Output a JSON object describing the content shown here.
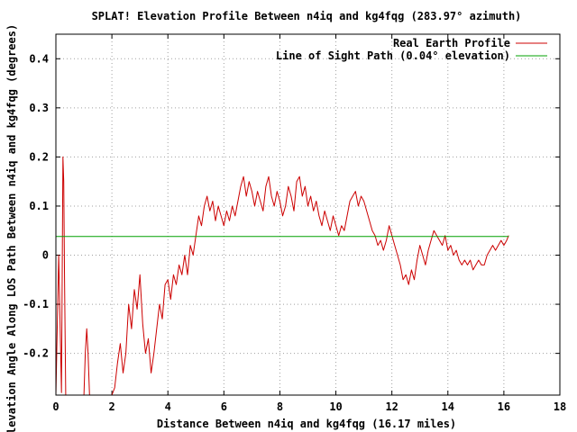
{
  "chart_data": {
    "type": "line",
    "title": "SPLAT! Elevation Profile Between n4iq and kg4fqg (283.97° azimuth)",
    "xlabel": "Distance Between n4iq and kg4fqg (16.17 miles)",
    "ylabel": "Elevation Angle Along LOS Path Between n4iq and kg4fqg (degrees)",
    "xlim": [
      0,
      18
    ],
    "ylim": [
      -0.285,
      0.45
    ],
    "xticks": [
      "0",
      "2",
      "4",
      "6",
      "8",
      "10",
      "12",
      "14",
      "16",
      "18"
    ],
    "yticks": [
      "-0.2",
      "-0.1",
      "0",
      "0.1",
      "0.2",
      "0.3",
      "0.4"
    ],
    "grid": true,
    "legend_position": "top-right",
    "colors": {
      "earth": "#cc0000",
      "los": "#00a000",
      "grid": "#a0a0a0"
    },
    "series": [
      {
        "name": "Real Earth Profile",
        "color": "#cc0000",
        "x": [
          0.0,
          0.1,
          0.2,
          0.25,
          0.28,
          0.31,
          0.35,
          0.4,
          1.0,
          1.05,
          1.1,
          1.15,
          1.2,
          2.0,
          2.1,
          2.2,
          2.3,
          2.4,
          2.5,
          2.6,
          2.7,
          2.8,
          2.9,
          3.0,
          3.1,
          3.2,
          3.3,
          3.4,
          3.5,
          3.6,
          3.7,
          3.8,
          3.9,
          4.0,
          4.1,
          4.2,
          4.3,
          4.4,
          4.5,
          4.6,
          4.7,
          4.8,
          4.9,
          5.0,
          5.1,
          5.2,
          5.3,
          5.4,
          5.5,
          5.6,
          5.7,
          5.8,
          5.9,
          6.0,
          6.1,
          6.2,
          6.3,
          6.4,
          6.5,
          6.6,
          6.7,
          6.8,
          6.9,
          7.0,
          7.1,
          7.2,
          7.3,
          7.4,
          7.5,
          7.6,
          7.7,
          7.8,
          7.9,
          8.0,
          8.1,
          8.2,
          8.3,
          8.4,
          8.5,
          8.6,
          8.7,
          8.8,
          8.9,
          9.0,
          9.1,
          9.2,
          9.3,
          9.4,
          9.5,
          9.6,
          9.7,
          9.8,
          9.9,
          10.0,
          10.1,
          10.2,
          10.3,
          10.4,
          10.5,
          10.6,
          10.7,
          10.8,
          10.9,
          11.0,
          11.1,
          11.2,
          11.3,
          11.4,
          11.5,
          11.6,
          11.7,
          11.8,
          11.9,
          12.0,
          12.1,
          12.2,
          12.3,
          12.4,
          12.5,
          12.6,
          12.7,
          12.8,
          12.9,
          13.0,
          13.1,
          13.2,
          13.3,
          13.4,
          13.5,
          13.6,
          13.7,
          13.8,
          13.9,
          14.0,
          14.1,
          14.2,
          14.3,
          14.4,
          14.5,
          14.6,
          14.7,
          14.8,
          14.9,
          15.0,
          15.1,
          15.2,
          15.3,
          15.4,
          15.5,
          15.6,
          15.7,
          15.8,
          15.9,
          16.0,
          16.1,
          16.17
        ],
        "y": [
          -0.285,
          0.0,
          -0.28,
          0.2,
          0.15,
          -0.05,
          -0.285,
          -0.285,
          -0.285,
          -0.2,
          -0.15,
          -0.2,
          -0.285,
          -0.285,
          -0.27,
          -0.22,
          -0.18,
          -0.24,
          -0.2,
          -0.1,
          -0.15,
          -0.07,
          -0.11,
          -0.04,
          -0.14,
          -0.2,
          -0.17,
          -0.24,
          -0.2,
          -0.15,
          -0.1,
          -0.13,
          -0.06,
          -0.05,
          -0.09,
          -0.04,
          -0.06,
          -0.02,
          -0.04,
          0.0,
          -0.04,
          0.02,
          0.0,
          0.04,
          0.08,
          0.06,
          0.1,
          0.12,
          0.09,
          0.11,
          0.07,
          0.1,
          0.08,
          0.06,
          0.09,
          0.07,
          0.1,
          0.08,
          0.11,
          0.14,
          0.16,
          0.12,
          0.15,
          0.13,
          0.1,
          0.13,
          0.11,
          0.09,
          0.14,
          0.16,
          0.12,
          0.1,
          0.13,
          0.11,
          0.08,
          0.1,
          0.14,
          0.12,
          0.09,
          0.15,
          0.16,
          0.12,
          0.14,
          0.1,
          0.12,
          0.09,
          0.11,
          0.08,
          0.06,
          0.09,
          0.07,
          0.05,
          0.08,
          0.06,
          0.04,
          0.06,
          0.05,
          0.08,
          0.11,
          0.12,
          0.13,
          0.1,
          0.12,
          0.11,
          0.09,
          0.07,
          0.05,
          0.04,
          0.02,
          0.03,
          0.01,
          0.03,
          0.06,
          0.04,
          0.02,
          0.0,
          -0.02,
          -0.05,
          -0.04,
          -0.06,
          -0.03,
          -0.05,
          -0.01,
          0.02,
          0.0,
          -0.02,
          0.01,
          0.03,
          0.05,
          0.04,
          0.03,
          0.02,
          0.04,
          0.01,
          0.02,
          0.0,
          0.01,
          -0.01,
          -0.02,
          -0.01,
          -0.02,
          -0.01,
          -0.03,
          -0.02,
          -0.01,
          -0.02,
          -0.02,
          0.0,
          0.01,
          0.02,
          0.01,
          0.02,
          0.03,
          0.02,
          0.03,
          0.04
        ]
      },
      {
        "name": "Line of Sight Path (0.04° elevation)",
        "color": "#00a000",
        "x": [
          0,
          16.17
        ],
        "y": [
          0.038,
          0.038
        ]
      }
    ]
  }
}
